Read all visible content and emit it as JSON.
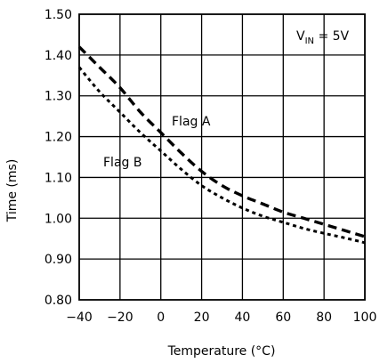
{
  "chart_data": {
    "type": "line",
    "title": "",
    "xlabel": "Temperature (°C)",
    "ylabel": "Time (ms)",
    "xlim": [
      -40,
      100
    ],
    "ylim": [
      0.8,
      1.5
    ],
    "x_ticks": [
      "-40",
      "-20",
      "0",
      "20",
      "40",
      "60",
      "80",
      "100"
    ],
    "y_ticks": [
      "0.80",
      "0.90",
      "1.00",
      "1.10",
      "1.20",
      "1.30",
      "1.40",
      "1.50"
    ],
    "grid": true,
    "condition": {
      "prefix": "V",
      "subscript": "IN",
      "suffix": " = 5V"
    },
    "series": [
      {
        "name": "Flag A",
        "style": "dashed",
        "x": [
          -40,
          -30,
          -20,
          -10,
          0,
          10,
          20,
          30,
          40,
          50,
          60,
          70,
          80,
          90,
          100
        ],
        "y": [
          1.42,
          1.37,
          1.32,
          1.26,
          1.21,
          1.16,
          1.115,
          1.08,
          1.055,
          1.035,
          1.015,
          1.0,
          0.985,
          0.97,
          0.955
        ]
      },
      {
        "name": "Flag B",
        "style": "dotted",
        "x": [
          -40,
          -30,
          -20,
          -10,
          0,
          10,
          20,
          30,
          40,
          50,
          60,
          70,
          80,
          90,
          100
        ],
        "y": [
          1.37,
          1.31,
          1.26,
          1.21,
          1.165,
          1.12,
          1.08,
          1.05,
          1.025,
          1.005,
          0.99,
          0.975,
          0.963,
          0.952,
          0.94
        ]
      }
    ]
  }
}
